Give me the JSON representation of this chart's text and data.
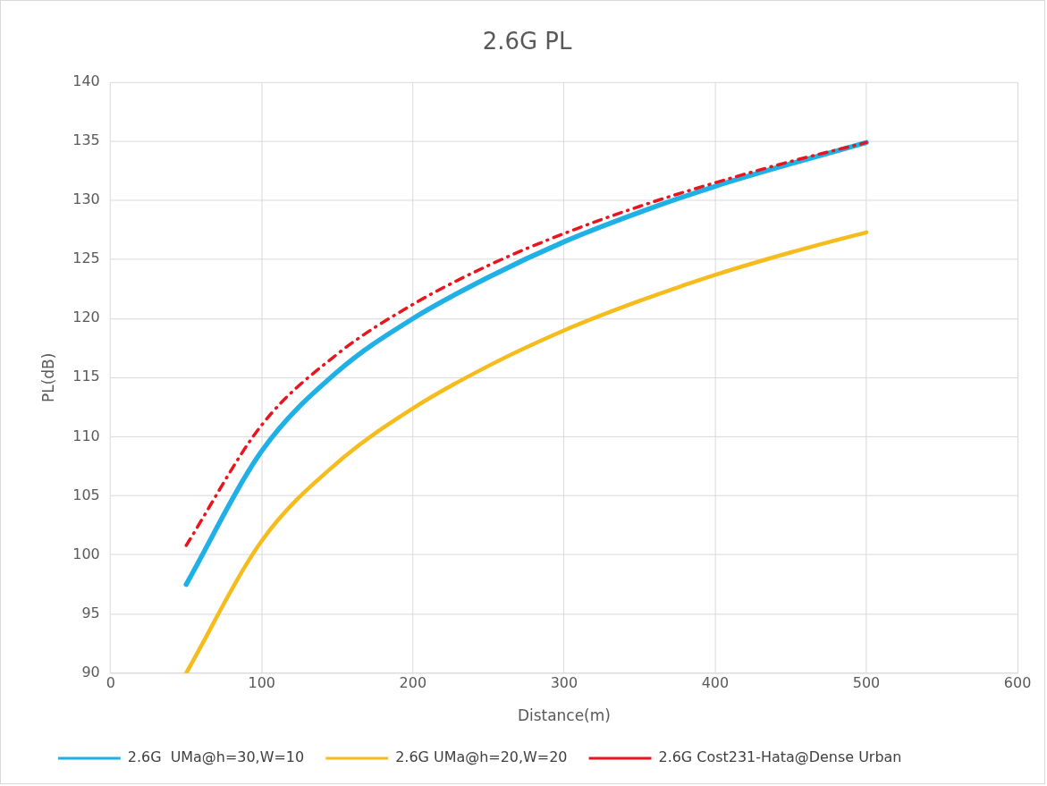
{
  "chart_data": {
    "type": "line",
    "title": "2.6G PL",
    "xlabel": "Distance(m)",
    "ylabel": "PL(dB)",
    "x": [
      50,
      100,
      150,
      200,
      250,
      300,
      350,
      400,
      450,
      500
    ],
    "xlim": [
      0,
      600
    ],
    "xticks": [
      0,
      100,
      200,
      300,
      400,
      500,
      600
    ],
    "ylim": [
      90,
      140
    ],
    "yticks": [
      90,
      95,
      100,
      105,
      110,
      115,
      120,
      125,
      130,
      135,
      140
    ],
    "grid": true,
    "legend": "bottom",
    "marker": "none",
    "series": [
      {
        "name": "2.6G  UMa@h=30,W=10",
        "color": "#1fb0e6",
        "line_style": "solid",
        "values": [
          97.5,
          108.8,
          115.5,
          120.0,
          123.5,
          126.5,
          129.0,
          131.2,
          133.1,
          134.9
        ]
      },
      {
        "name": "2.6G UMa@h=20,W=20",
        "color": "#f5bc1c",
        "line_style": "solid",
        "values": [
          90.0,
          101.2,
          107.8,
          112.4,
          116.0,
          119.0,
          121.5,
          123.7,
          125.6,
          127.3
        ]
      },
      {
        "name": "2.6G Cost231-Hata@Dense Urban",
        "color": "#e8141e",
        "line_style": "dashed",
        "values": [
          100.8,
          111.0,
          117.0,
          121.2,
          124.5,
          127.2,
          129.5,
          131.5,
          133.3,
          134.9
        ]
      }
    ]
  }
}
